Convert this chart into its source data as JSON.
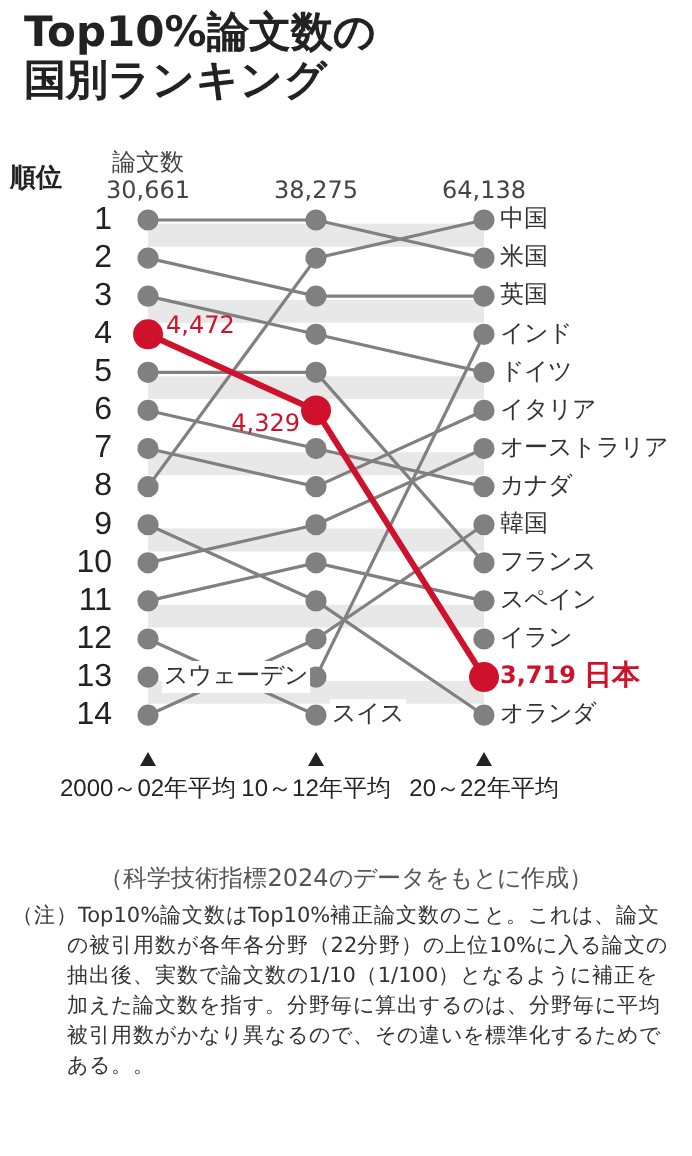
{
  "chart_data": {
    "type": "line",
    "title": "Top10%論文数の国別ランキング",
    "ylabel": "順位",
    "categories": [
      "2000～02年平均",
      "10～12年平均",
      "20～22年平均"
    ],
    "series": [
      {
        "name": "中国",
        "color": "#808080",
        "values": [
          8,
          2,
          1
        ]
      },
      {
        "name": "米国",
        "color": "#808080",
        "values": [
          1,
          1,
          2
        ]
      },
      {
        "name": "英国",
        "color": "#808080",
        "values": [
          2,
          3,
          3
        ]
      },
      {
        "name": "インド",
        "color": "#808080",
        "values": [
          null,
          13,
          4
        ]
      },
      {
        "name": "ドイツ",
        "color": "#808080",
        "values": [
          3,
          4,
          5
        ]
      },
      {
        "name": "イタリア",
        "color": "#808080",
        "values": [
          7,
          8,
          6
        ]
      },
      {
        "name": "オーストラリア",
        "color": "#808080",
        "values": [
          10,
          9,
          7
        ]
      },
      {
        "name": "カナダ",
        "color": "#808080",
        "values": [
          6,
          7,
          8
        ]
      },
      {
        "name": "韓国",
        "color": "#808080",
        "values": [
          14,
          12,
          9
        ]
      },
      {
        "name": "フランス",
        "color": "#808080",
        "values": [
          5,
          5,
          10
        ]
      },
      {
        "name": "スペイン",
        "color": "#808080",
        "values": [
          11,
          10,
          11
        ]
      },
      {
        "name": "イラン",
        "color": "#808080",
        "values": [
          null,
          null,
          12
        ]
      },
      {
        "name": "オランダ",
        "color": "#808080",
        "values": [
          9,
          11,
          14
        ]
      },
      {
        "name": "スウェーデン",
        "color": "#808080",
        "values": [
          13,
          null,
          null
        ]
      },
      {
        "name": "スイス",
        "color": "#808080",
        "values": [
          12,
          14,
          null
        ]
      },
      {
        "name": "日本",
        "color": "#d0112b",
        "values": [
          4,
          6,
          13
        ]
      }
    ],
    "ylim": [
      14,
      1
    ],
    "yticks": [
      1,
      2,
      3,
      4,
      5,
      6,
      7,
      8,
      9,
      10,
      11,
      12,
      13,
      14
    ],
    "grid": false,
    "legend": false,
    "marker": "circle",
    "line_style": "solid",
    "bands": [
      {
        "axis": "y",
        "from": 1.1,
        "to": 1.7,
        "color": "#e8e8e8"
      },
      {
        "axis": "y",
        "from": 3.1,
        "to": 3.7,
        "color": "#e8e8e8"
      },
      {
        "axis": "y",
        "from": 5.1,
        "to": 5.7,
        "color": "#e8e8e8"
      },
      {
        "axis": "y",
        "from": 7.1,
        "to": 7.7,
        "color": "#e8e8e8"
      },
      {
        "axis": "y",
        "from": 9.1,
        "to": 9.7,
        "color": "#e8e8e8"
      },
      {
        "axis": "y",
        "from": 11.1,
        "to": 11.7,
        "color": "#e8e8e8"
      },
      {
        "axis": "y",
        "from": 13.1,
        "to": 13.7,
        "color": "#e8e8e8"
      }
    ],
    "annotations": [
      {
        "text": "30,661",
        "x": "2000～02年平均",
        "y": 1
      },
      {
        "text": "論文数",
        "x": "2000～02年平均",
        "y": 1
      },
      {
        "text": "38,275",
        "x": "10～12年平均",
        "y": 1
      },
      {
        "text": "64,138",
        "x": "20～22年平均",
        "y": 1
      },
      {
        "text": "4,472",
        "x": "2000～02年平均",
        "y": 4
      },
      {
        "text": "4,329",
        "x": "10～12年平均",
        "y": 6
      },
      {
        "text": "3,719",
        "x": "20～22年平均",
        "y": 13
      },
      "（科学技術指標2024のデータをもとに作成）",
      "（注）Top10%論文数はTop10%補正論文数のこと。これは、論文の被引用数が各年各分野（22分野）の上位10%に入る論文の抽出後、実数で論文数の1/10（1/100）となるように補正を加えた論文数を指す。分野毎に算出するのは、分野毎に平均被引用数がかなり異なるので、その違いを標準化するためである。。"
    ]
  }
}
